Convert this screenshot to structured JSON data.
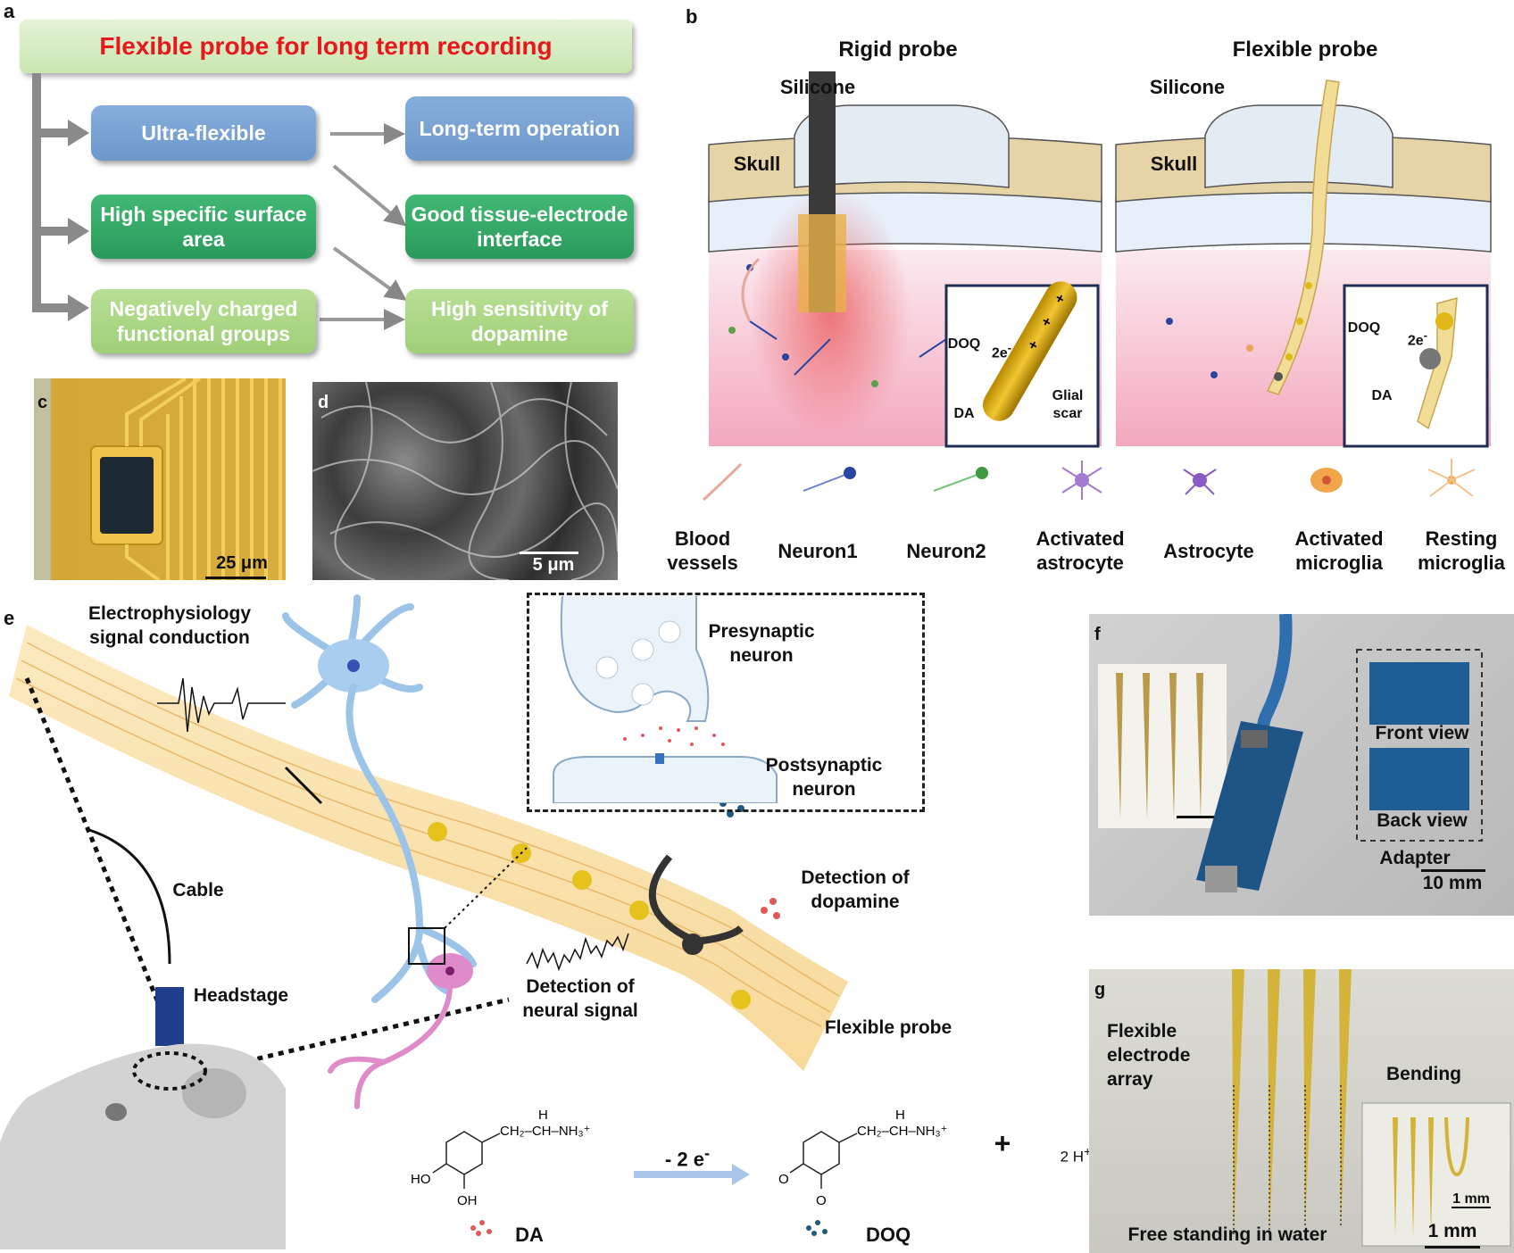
{
  "panel_a": {
    "label": "a",
    "title": "Flexible probe for long term recording",
    "left_boxes": [
      "Ultra-flexible",
      "High specific surface area",
      "Negatively charged functional groups"
    ],
    "right_boxes": [
      "Long-term operation",
      "Good tissue-electrode interface",
      "High sensitivity of dopamine"
    ],
    "colors": {
      "title": "#e8171c",
      "blue": "#7aa3d6",
      "green": "#36a868",
      "light_green": "#a9d786"
    }
  },
  "panel_b": {
    "label": "b",
    "rigid_title": "Rigid probe",
    "flexible_title": "Flexible probe",
    "silicone": "Silicone",
    "skull": "Skull",
    "doq": "DOQ",
    "two_e": "2e",
    "da": "DA",
    "glial_scar": "Glial scar",
    "legend": [
      "Blood vessels",
      "Neuron1",
      "Neuron2",
      "Activated astrocyte",
      "Astrocyte",
      "Activated microglia",
      "Resting microglia"
    ]
  },
  "panel_c": {
    "label": "c",
    "scale": "25 μm"
  },
  "panel_d": {
    "label": "d",
    "scale": "5 μm"
  },
  "panel_e": {
    "label": "e",
    "electrophysiology": "Electrophysiology signal conduction",
    "presynaptic": "Presynaptic neuron",
    "postsynaptic": "Postsynaptic neuron",
    "cable": "Cable",
    "headstage": "Headstage",
    "detection_dopamine": "Detection of dopamine",
    "detection_neural": "Detection of neural signal",
    "flexible_probe": "Flexible probe",
    "reaction": {
      "da": "DA",
      "doq": "DOQ",
      "arrow": "- 2 e",
      "plus": "+",
      "protons": "2 H"
    }
  },
  "panel_f": {
    "label": "f",
    "front": "Front view",
    "back": "Back view",
    "adapter": "Adapter",
    "scale": "10 mm"
  },
  "panel_g": {
    "label": "g",
    "array": "Flexible electrode array",
    "bending": "Bending",
    "scale_inset": "1 mm",
    "free": "Free standing in water",
    "scale": "1 mm"
  }
}
